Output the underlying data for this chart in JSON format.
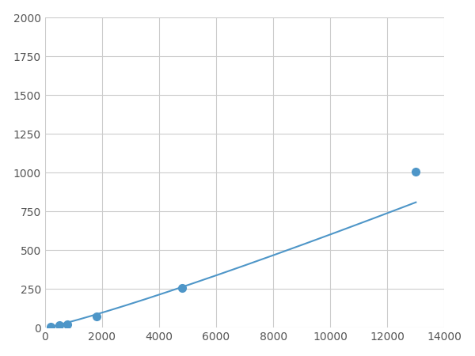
{
  "x": [
    200,
    500,
    800,
    1800,
    4800,
    13000
  ],
  "y": [
    10,
    20,
    25,
    75,
    255,
    1005
  ],
  "line_color": "#4e96c8",
  "marker_color": "#4e96c8",
  "marker_size": 7,
  "xlim": [
    0,
    14000
  ],
  "ylim": [
    0,
    2000
  ],
  "xticks": [
    0,
    2000,
    4000,
    6000,
    8000,
    10000,
    12000,
    14000
  ],
  "yticks": [
    0,
    250,
    500,
    750,
    1000,
    1250,
    1500,
    1750,
    2000
  ],
  "grid_color": "#cccccc",
  "background_color": "#ffffff",
  "fig_background_color": "#ffffff"
}
